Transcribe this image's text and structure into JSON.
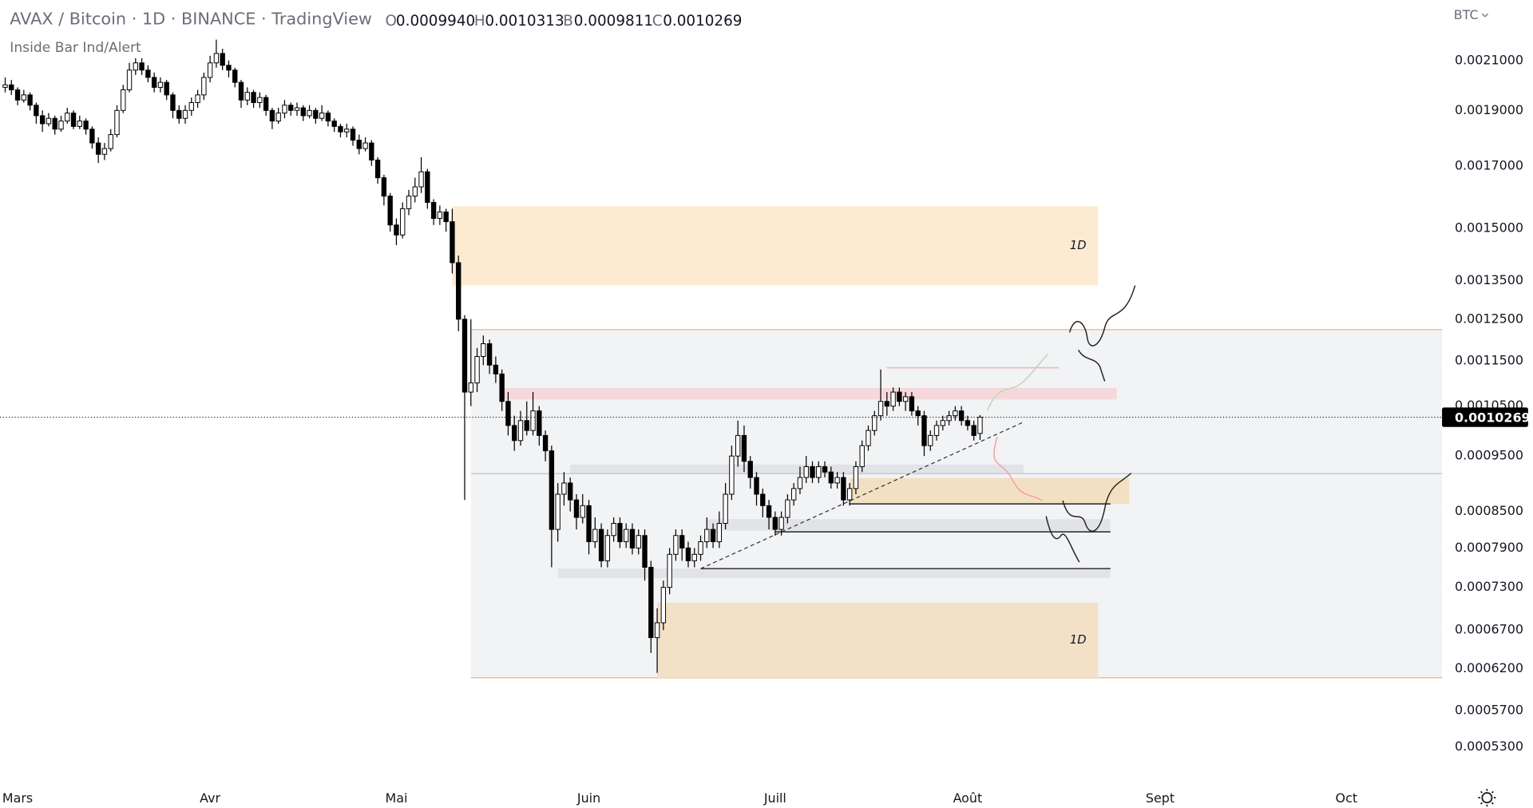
{
  "chart_data": {
    "type": "candlestick",
    "title": "AVAX / Bitcoin · 1D · BINANCE · TradingView",
    "ohlc_legend": [
      {
        "key": "O",
        "value": "0.0009940"
      },
      {
        "key": "H",
        "value": "0.0010313"
      },
      {
        "key": "B",
        "value": "0.0009811"
      },
      {
        "key": "C",
        "value": "0.0010269"
      }
    ],
    "indicator": "Inside Bar Ind/Alert",
    "currency": "BTC",
    "log_scale": true,
    "xlim": [
      -2.83,
      229.4
    ],
    "ylim": [
      0.000494,
      0.002371
    ],
    "xticks": [
      {
        "value": 0,
        "label": "Mars"
      },
      {
        "value": 31,
        "label": "Avr"
      },
      {
        "value": 61,
        "label": "Mai"
      },
      {
        "value": 92,
        "label": "Juin"
      },
      {
        "value": 122,
        "label": "Juill"
      },
      {
        "value": 153,
        "label": "Août"
      },
      {
        "value": 184,
        "label": "Sept"
      },
      {
        "value": 214,
        "label": "Oct"
      }
    ],
    "yticks": [
      {
        "value": 0.0021,
        "label": "0.0021000"
      },
      {
        "value": 0.0019,
        "label": "0.0019000"
      },
      {
        "value": 0.0017,
        "label": "0.0017000"
      },
      {
        "value": 0.0015,
        "label": "0.0015000"
      },
      {
        "value": 0.00135,
        "label": "0.0013500"
      },
      {
        "value": 0.00125,
        "label": "0.0012500"
      },
      {
        "value": 0.00115,
        "label": "0.0011500"
      },
      {
        "value": 0.00105,
        "label": "0.0010500"
      },
      {
        "value": 0.00095,
        "label": "0.0009500"
      },
      {
        "value": 0.00085,
        "label": "0.0008500"
      },
      {
        "value": 0.00079,
        "label": "0.0007900"
      },
      {
        "value": 0.00073,
        "label": "0.0007300"
      },
      {
        "value": 0.00067,
        "label": "0.0006700"
      },
      {
        "value": 0.00062,
        "label": "0.0006200"
      },
      {
        "value": 0.00057,
        "label": "0.0005700"
      },
      {
        "value": 0.00053,
        "label": "0.0005300"
      }
    ],
    "up_color": "#ffffff",
    "down_color": "#000000",
    "outline_color": "#000000",
    "x": [
      -2,
      -1,
      0,
      1,
      2,
      3,
      4,
      5,
      6,
      7,
      8,
      9,
      10,
      11,
      12,
      13,
      14,
      15,
      16,
      17,
      18,
      19,
      20,
      21,
      22,
      23,
      24,
      25,
      26,
      27,
      28,
      29,
      30,
      31,
      32,
      33,
      34,
      35,
      36,
      37,
      38,
      39,
      40,
      41,
      42,
      43,
      44,
      45,
      46,
      47,
      48,
      49,
      50,
      51,
      52,
      53,
      54,
      55,
      56,
      57,
      58,
      59,
      60,
      61,
      62,
      63,
      64,
      65,
      66,
      67,
      68,
      69,
      70,
      71,
      72,
      73,
      74,
      75,
      76,
      77,
      78,
      79,
      80,
      81,
      82,
      83,
      84,
      85,
      86,
      87,
      88,
      89,
      90,
      91,
      92,
      93,
      94,
      95,
      96,
      97,
      98,
      99,
      100,
      101,
      102,
      103,
      104,
      105,
      106,
      107,
      108,
      109,
      110,
      111,
      112,
      113,
      114,
      115,
      116,
      117,
      118,
      119,
      120,
      121,
      122,
      123,
      124,
      125,
      126,
      127,
      128,
      129,
      130,
      131,
      132,
      133,
      134,
      135,
      136,
      137,
      138,
      139,
      140,
      141,
      142,
      143,
      144,
      145,
      146,
      147,
      148,
      149,
      150,
      151,
      152,
      153,
      154,
      155
    ],
    "open": [
      0.00199,
      0.002,
      0.00198,
      0.00194,
      0.00196,
      0.00192,
      0.00188,
      0.00185,
      0.00187,
      0.00183,
      0.00186,
      0.00189,
      0.00184,
      0.00186,
      0.00183,
      0.00178,
      0.00174,
      0.00176,
      0.00181,
      0.0019,
      0.00198,
      0.00206,
      0.00209,
      0.00206,
      0.00203,
      0.00199,
      0.00201,
      0.00196,
      0.0019,
      0.00187,
      0.0019,
      0.00193,
      0.00196,
      0.00203,
      0.00209,
      0.00213,
      0.00208,
      0.00206,
      0.00201,
      0.00194,
      0.00197,
      0.00193,
      0.00195,
      0.0019,
      0.00186,
      0.00189,
      0.00192,
      0.0019,
      0.00191,
      0.00188,
      0.0019,
      0.00187,
      0.00189,
      0.00186,
      0.00184,
      0.00182,
      0.00183,
      0.00179,
      0.00176,
      0.00178,
      0.00172,
      0.00166,
      0.0016,
      0.00151,
      0.00148,
      0.00156,
      0.0016,
      0.00163,
      0.00168,
      0.00158,
      0.00153,
      0.00155,
      0.00152,
      0.0014,
      0.00125,
      0.00108,
      0.0011,
      0.00116,
      0.00119,
      0.00114,
      0.00112,
      0.00106,
      0.00101,
      0.00098,
      0.00102,
      0.001,
      0.00104,
      0.00099,
      0.00096,
      0.00082,
      0.00088,
      0.0009,
      0.00087,
      0.00084,
      0.00086,
      0.0008,
      0.00082,
      0.00077,
      0.00081,
      0.00083,
      0.0008,
      0.00082,
      0.00079,
      0.00081,
      0.00076,
      0.00066,
      0.00068,
      0.00073,
      0.00078,
      0.00081,
      0.00079,
      0.00077,
      0.00078,
      0.0008,
      0.00082,
      0.0008,
      0.00083,
      0.00088,
      0.00095,
      0.00099,
      0.00094,
      0.00091,
      0.00088,
      0.00086,
      0.00084,
      0.00082,
      0.00084,
      0.00087,
      0.00089,
      0.00091,
      0.00093,
      0.00091,
      0.00093,
      0.00092,
      0.0009,
      0.00091,
      0.00087,
      0.00089,
      0.00093,
      0.00097,
      0.001,
      0.00103,
      0.00106,
      0.00105,
      0.00108,
      0.00106,
      0.00107,
      0.00104,
      0.00103,
      0.00097,
      0.00099,
      0.00101,
      0.00102,
      0.00103,
      0.00104,
      0.00102,
      0.00101,
      0.000994
    ],
    "high": [
      0.00203,
      0.00202,
      0.00199,
      0.00198,
      0.00197,
      0.00193,
      0.0019,
      0.00189,
      0.00188,
      0.00188,
      0.00191,
      0.0019,
      0.00188,
      0.00187,
      0.00184,
      0.0018,
      0.00178,
      0.00183,
      0.00192,
      0.002,
      0.00209,
      0.00211,
      0.00211,
      0.00208,
      0.00205,
      0.00203,
      0.00202,
      0.00197,
      0.00192,
      0.00192,
      0.00195,
      0.00198,
      0.00205,
      0.00212,
      0.00219,
      0.00215,
      0.0021,
      0.00207,
      0.00202,
      0.00199,
      0.00198,
      0.00197,
      0.00196,
      0.00191,
      0.00191,
      0.00194,
      0.00193,
      0.00193,
      0.00192,
      0.00192,
      0.00191,
      0.00192,
      0.0019,
      0.00187,
      0.00185,
      0.00185,
      0.00184,
      0.00181,
      0.0018,
      0.00179,
      0.00173,
      0.00167,
      0.00161,
      0.00153,
      0.00158,
      0.00162,
      0.00166,
      0.00173,
      0.00169,
      0.00159,
      0.00157,
      0.00156,
      0.00156,
      0.00142,
      0.00126,
      0.00125,
      0.00118,
      0.00121,
      0.0012,
      0.00116,
      0.00113,
      0.00108,
      0.00103,
      0.00104,
      0.00106,
      0.00108,
      0.00105,
      0.001,
      0.00097,
      0.0009,
      0.00092,
      0.00091,
      0.00088,
      0.00088,
      0.00087,
      0.00084,
      0.00083,
      0.00082,
      0.00084,
      0.00084,
      0.00083,
      0.00083,
      0.00082,
      0.00082,
      0.00077,
      0.0007,
      0.00074,
      0.00079,
      0.00082,
      0.00082,
      0.0008,
      0.00079,
      0.00081,
      0.00084,
      0.00083,
      0.00085,
      0.0009,
      0.00097,
      0.00102,
      0.00101,
      0.00095,
      0.00092,
      0.00089,
      0.00087,
      0.00085,
      0.00085,
      0.00088,
      0.0009,
      0.00093,
      0.00095,
      0.00094,
      0.00094,
      0.00094,
      0.00093,
      0.00092,
      0.00092,
      0.0009,
      0.00094,
      0.00098,
      0.00101,
      0.00104,
      0.00113,
      0.00108,
      0.00109,
      0.00109,
      0.00108,
      0.00108,
      0.00105,
      0.00104,
      0.001,
      0.00102,
      0.00103,
      0.00104,
      0.00105,
      0.00105,
      0.00103,
      0.00102,
      0.0010313
    ],
    "low": [
      0.00197,
      0.00196,
      0.00192,
      0.00193,
      0.0019,
      0.00185,
      0.00182,
      0.00184,
      0.00181,
      0.00182,
      0.00185,
      0.00183,
      0.00183,
      0.00181,
      0.00176,
      0.00171,
      0.00172,
      0.00175,
      0.0018,
      0.00189,
      0.00197,
      0.00204,
      0.00204,
      0.00201,
      0.00197,
      0.00197,
      0.00194,
      0.00187,
      0.00185,
      0.00185,
      0.00188,
      0.00191,
      0.00194,
      0.00201,
      0.00207,
      0.00206,
      0.00203,
      0.00199,
      0.00191,
      0.00192,
      0.00191,
      0.00191,
      0.00188,
      0.00183,
      0.00185,
      0.00187,
      0.00188,
      0.00188,
      0.00186,
      0.00187,
      0.00185,
      0.00186,
      0.00184,
      0.00182,
      0.0018,
      0.0018,
      0.00177,
      0.00174,
      0.00175,
      0.0017,
      0.00164,
      0.00157,
      0.00149,
      0.00145,
      0.00147,
      0.00154,
      0.00158,
      0.00161,
      0.00156,
      0.00151,
      0.00151,
      0.00149,
      0.00137,
      0.00122,
      0.00087,
      0.00105,
      0.00108,
      0.00114,
      0.00112,
      0.0011,
      0.00104,
      0.00099,
      0.00096,
      0.00097,
      0.00099,
      0.00099,
      0.00097,
      0.00094,
      0.00076,
      0.0008,
      0.00086,
      0.00085,
      0.00082,
      0.00083,
      0.00078,
      0.00079,
      0.00076,
      0.00076,
      0.0008,
      0.00079,
      0.00079,
      0.00078,
      0.00078,
      0.00074,
      0.00064,
      0.000615,
      0.00067,
      0.00072,
      0.00077,
      0.00077,
      0.00076,
      0.00076,
      0.00077,
      0.00079,
      0.00079,
      0.00079,
      0.00082,
      0.00087,
      0.00093,
      0.00092,
      0.00089,
      0.00086,
      0.00084,
      0.00082,
      0.00081,
      0.00081,
      0.00083,
      0.00086,
      0.00088,
      0.0009,
      0.0009,
      0.0009,
      0.00091,
      0.00089,
      0.00089,
      0.00086,
      0.00086,
      0.00088,
      0.00092,
      0.00096,
      0.00099,
      0.00102,
      0.00103,
      0.00104,
      0.00105,
      0.00104,
      0.00103,
      0.00101,
      0.00095,
      0.00096,
      0.00098,
      0.001,
      0.00101,
      0.00102,
      0.00101,
      0.001,
      0.00098,
      0.0009811
    ],
    "close": [
      0.002,
      0.00198,
      0.00194,
      0.00196,
      0.00192,
      0.00188,
      0.00185,
      0.00187,
      0.00183,
      0.00186,
      0.00189,
      0.00184,
      0.00186,
      0.00183,
      0.00178,
      0.00174,
      0.00176,
      0.00181,
      0.0019,
      0.00198,
      0.00206,
      0.00209,
      0.00206,
      0.00203,
      0.00199,
      0.00201,
      0.00196,
      0.0019,
      0.00187,
      0.0019,
      0.00193,
      0.00196,
      0.00203,
      0.00209,
      0.00213,
      0.00208,
      0.00206,
      0.00201,
      0.00194,
      0.00197,
      0.00193,
      0.00195,
      0.0019,
      0.00186,
      0.00189,
      0.00192,
      0.0019,
      0.00191,
      0.00188,
      0.0019,
      0.00187,
      0.00189,
      0.00186,
      0.00184,
      0.00182,
      0.00183,
      0.00179,
      0.00176,
      0.00178,
      0.00172,
      0.00166,
      0.0016,
      0.00151,
      0.00148,
      0.00156,
      0.0016,
      0.00163,
      0.00168,
      0.00158,
      0.00153,
      0.00155,
      0.00152,
      0.0014,
      0.00125,
      0.00108,
      0.0011,
      0.00116,
      0.00119,
      0.00114,
      0.00112,
      0.00106,
      0.00101,
      0.00098,
      0.00102,
      0.001,
      0.00104,
      0.00099,
      0.00096,
      0.00082,
      0.00088,
      0.0009,
      0.00087,
      0.00084,
      0.00086,
      0.0008,
      0.00082,
      0.00077,
      0.00081,
      0.00083,
      0.0008,
      0.00082,
      0.00079,
      0.00081,
      0.00076,
      0.00066,
      0.00068,
      0.00073,
      0.00078,
      0.00081,
      0.00079,
      0.00077,
      0.00078,
      0.0008,
      0.00082,
      0.0008,
      0.00083,
      0.00088,
      0.00095,
      0.00099,
      0.00094,
      0.00091,
      0.00088,
      0.00086,
      0.00084,
      0.00082,
      0.00084,
      0.00087,
      0.00089,
      0.00091,
      0.00093,
      0.00091,
      0.00093,
      0.00092,
      0.0009,
      0.00091,
      0.00087,
      0.00089,
      0.00093,
      0.00097,
      0.001,
      0.00103,
      0.00106,
      0.00105,
      0.00108,
      0.00106,
      0.00107,
      0.00104,
      0.00103,
      0.00097,
      0.00099,
      0.00101,
      0.00102,
      0.00103,
      0.00104,
      0.00102,
      0.00101,
      0.00099,
      0.0010269
    ],
    "zones": [
      {
        "x": [
          73,
          229.4
        ],
        "y": [
          0.000609,
          0.001224
        ],
        "color": "#f2f3f5",
        "border": "#f0b47a"
      },
      {
        "x": [
          70,
          174
        ],
        "y": [
          0.001338,
          0.001568
        ],
        "color": "#fcebd2",
        "label": "1D"
      },
      {
        "x": [
          103,
          174
        ],
        "y": [
          0.000609,
          0.000708
        ],
        "color": "#f2e1c6",
        "label": "1D"
      },
      {
        "x": [
          77.8,
          177
        ],
        "y": [
          0.001064,
          0.001089
        ],
        "color": "#f6d8dc"
      },
      {
        "x": [
          134,
          179
        ],
        "y": [
          0.000863,
          0.000909
        ],
        "color": "#f2e0c2"
      },
      {
        "x": [
          89,
          162
        ],
        "y": [
          0.000917,
          0.000934
        ],
        "color": "#e2e3e7"
      },
      {
        "x": [
          111,
          176
        ],
        "y": [
          0.000818,
          0.000837
        ],
        "color": "#e2e3e7"
      },
      {
        "x": [
          87,
          176
        ],
        "y": [
          0.000744,
          0.000758
        ],
        "color": "#e2e3e7"
      }
    ],
    "levels": [
      {
        "x": [
          134,
          176
        ],
        "y": 0.000863,
        "color": "#222222"
      },
      {
        "x": [
          122,
          176
        ],
        "y": 0.000816,
        "color": "#222222"
      },
      {
        "x": [
          110,
          176
        ],
        "y": 0.000758,
        "color": "#222222"
      },
      {
        "x": [
          73,
          229.4
        ],
        "y": 0.000917,
        "color": "#c9cbd1"
      },
      {
        "x": [
          140,
          167.7
        ],
        "y": 0.001134,
        "color": "#e8b4b8"
      }
    ],
    "trendline": {
      "x": [
        110,
        162
      ],
      "y": [
        0.000758,
        0.001017
      ],
      "color": "#333333"
    }
  }
}
